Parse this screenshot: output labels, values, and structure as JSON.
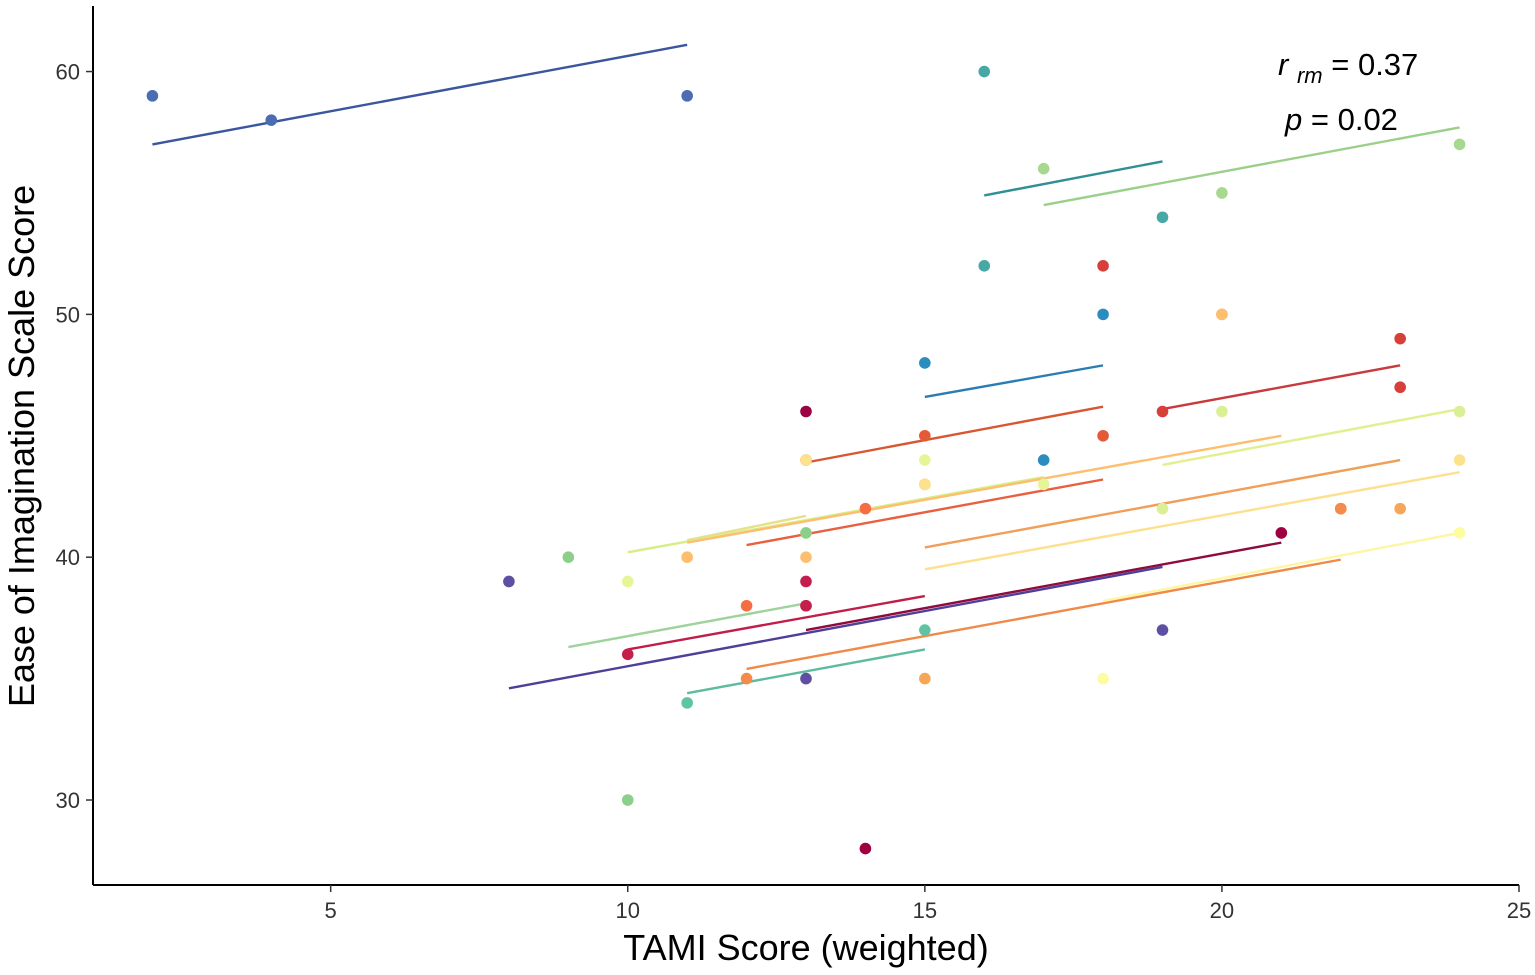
{
  "chart_data": {
    "type": "scatter",
    "title": "",
    "xlabel": "TAMI Score (weighted)",
    "ylabel": "Ease of Imagination Scale Score",
    "xlim": [
      1,
      25
    ],
    "ylim": [
      26.5,
      62.7
    ],
    "x_ticks": [
      5,
      10,
      15,
      20,
      25
    ],
    "y_ticks": [
      30,
      40,
      50,
      60
    ],
    "grid": false,
    "legend": "none",
    "annotation": {
      "r_symbol": "r",
      "r_subscript": "rm",
      "r_value": "= 0.37",
      "p_symbol": "p",
      "p_value": "= 0.02"
    },
    "series": [
      {
        "color": "#4a6cb3",
        "line_color": "#3a569e",
        "points": [
          [
            2,
            59
          ],
          [
            4,
            58
          ],
          [
            11,
            59
          ]
        ],
        "fit": [
          [
            2,
            57.0
          ],
          [
            11,
            61.1
          ]
        ]
      },
      {
        "color": "#47a8a6",
        "line_color": "#2e8f95",
        "points": [
          [
            16,
            60
          ],
          [
            16,
            52
          ],
          [
            19,
            54
          ]
        ],
        "fit": [
          [
            16,
            54.9
          ],
          [
            19,
            56.3
          ]
        ]
      },
      {
        "color": "#a6d88e",
        "line_color": "#9bd08a",
        "points": [
          [
            17,
            56
          ],
          [
            20,
            55
          ],
          [
            24,
            57
          ]
        ],
        "fit": [
          [
            17,
            54.5
          ],
          [
            24,
            57.7
          ]
        ]
      },
      {
        "color": "#2b8cbf",
        "line_color": "#2a7db2",
        "points": [
          [
            15,
            48
          ],
          [
            18,
            50
          ],
          [
            17,
            44
          ]
        ],
        "fit": [
          [
            15,
            46.6
          ],
          [
            18,
            47.9
          ]
        ]
      },
      {
        "color": "#d73f3a",
        "line_color": "#c83a3d",
        "points": [
          [
            18,
            52
          ],
          [
            19,
            46
          ],
          [
            23,
            49
          ],
          [
            23,
            47
          ]
        ],
        "fit": [
          [
            19,
            46.1
          ],
          [
            23,
            47.9
          ]
        ]
      },
      {
        "color": "#e45a37",
        "line_color": "#d95633",
        "points": [
          [
            13,
            44
          ],
          [
            15,
            45
          ],
          [
            18,
            45
          ]
        ],
        "fit": [
          [
            13,
            43.9
          ],
          [
            18,
            46.2
          ]
        ]
      },
      {
        "color": "#dbef95",
        "line_color": "#e2ef8e",
        "points": [
          [
            19,
            42
          ],
          [
            20,
            46
          ],
          [
            24,
            46
          ]
        ],
        "fit": [
          [
            19,
            43.8
          ],
          [
            24,
            46.1
          ]
        ]
      },
      {
        "color": "#f7a658",
        "line_color": "#f19e59",
        "points": [
          [
            15,
            35
          ],
          [
            20,
            50
          ],
          [
            23,
            42
          ],
          [
            15,
            43
          ]
        ],
        "fit": [
          [
            15,
            40.4
          ],
          [
            23,
            44.0
          ]
        ]
      },
      {
        "color": "#fde28e",
        "line_color": "#fde08e",
        "points": [
          [
            13,
            44
          ],
          [
            15,
            43
          ],
          [
            21,
            41
          ],
          [
            24,
            44
          ]
        ],
        "fit": [
          [
            15,
            39.5
          ],
          [
            24,
            43.5
          ]
        ]
      },
      {
        "color": "#e6f598",
        "line_color": "#d7ee86",
        "points": [
          [
            10,
            39
          ],
          [
            15,
            44
          ],
          [
            17,
            43
          ]
        ],
        "fit": [
          [
            10,
            40.2
          ],
          [
            17,
            43.3
          ]
        ]
      },
      {
        "color": "#ecec8e",
        "line_color": "#e6e08a",
        "points": [
          [
            11,
            40
          ],
          [
            13,
            41
          ]
        ],
        "fit": [
          [
            11,
            40.7
          ],
          [
            13,
            41.7
          ]
        ]
      },
      {
        "color": "#f46d43",
        "line_color": "#e8603f",
        "points": [
          [
            14,
            42
          ],
          [
            12,
            38
          ],
          [
            13,
            38
          ],
          [
            22,
            42
          ]
        ],
        "fit": [
          [
            12,
            40.5
          ],
          [
            18,
            43.2
          ]
        ]
      },
      {
        "color": "#fdbe6f",
        "line_color": "#fdbf6f",
        "points": [
          [
            11,
            40
          ],
          [
            13,
            40
          ],
          [
            20,
            50
          ],
          [
            21,
            41
          ]
        ],
        "fit": [
          [
            11,
            40.6
          ],
          [
            21,
            45.0
          ]
        ]
      },
      {
        "color": "#8ccf8a",
        "line_color": "#9ed39a",
        "points": [
          [
            9,
            40
          ],
          [
            10,
            30
          ],
          [
            13,
            41
          ]
        ],
        "fit": [
          [
            9,
            36.3
          ],
          [
            13,
            38.1
          ]
        ]
      },
      {
        "color": "#5ec4a4",
        "line_color": "#5dbba0",
        "points": [
          [
            11,
            34
          ],
          [
            15,
            37
          ]
        ],
        "fit": [
          [
            11,
            34.4
          ],
          [
            15,
            36.2
          ]
        ]
      },
      {
        "color": "#c41e4c",
        "line_color": "#c01d49",
        "points": [
          [
            10,
            36
          ],
          [
            13,
            39
          ],
          [
            13,
            38
          ]
        ],
        "fit": [
          [
            10,
            36.2
          ],
          [
            15,
            38.4
          ]
        ]
      },
      {
        "color": "#9e0142",
        "line_color": "#8e0b3e",
        "points": [
          [
            13,
            46
          ],
          [
            14,
            28
          ],
          [
            21,
            41
          ]
        ],
        "fit": [
          [
            13,
            37.0
          ],
          [
            21,
            40.6
          ]
        ]
      },
      {
        "color": "#5e4fa2",
        "line_color": "#4f3f98",
        "points": [
          [
            8,
            39
          ],
          [
            13,
            35
          ],
          [
            19,
            37
          ]
        ],
        "fit": [
          [
            8,
            34.6
          ],
          [
            19,
            39.6
          ]
        ]
      },
      {
        "color": "#f58b48",
        "line_color": "#ef8a4a",
        "points": [
          [
            12,
            35
          ],
          [
            22,
            42
          ]
        ],
        "fit": [
          [
            12,
            35.4
          ],
          [
            22,
            39.9
          ]
        ]
      },
      {
        "color": "#fefca0",
        "line_color": "#fdf6a2",
        "points": [
          [
            18,
            35
          ],
          [
            24,
            41
          ]
        ],
        "fit": [
          [
            18,
            38.2
          ],
          [
            24,
            41.0
          ]
        ]
      }
    ]
  }
}
